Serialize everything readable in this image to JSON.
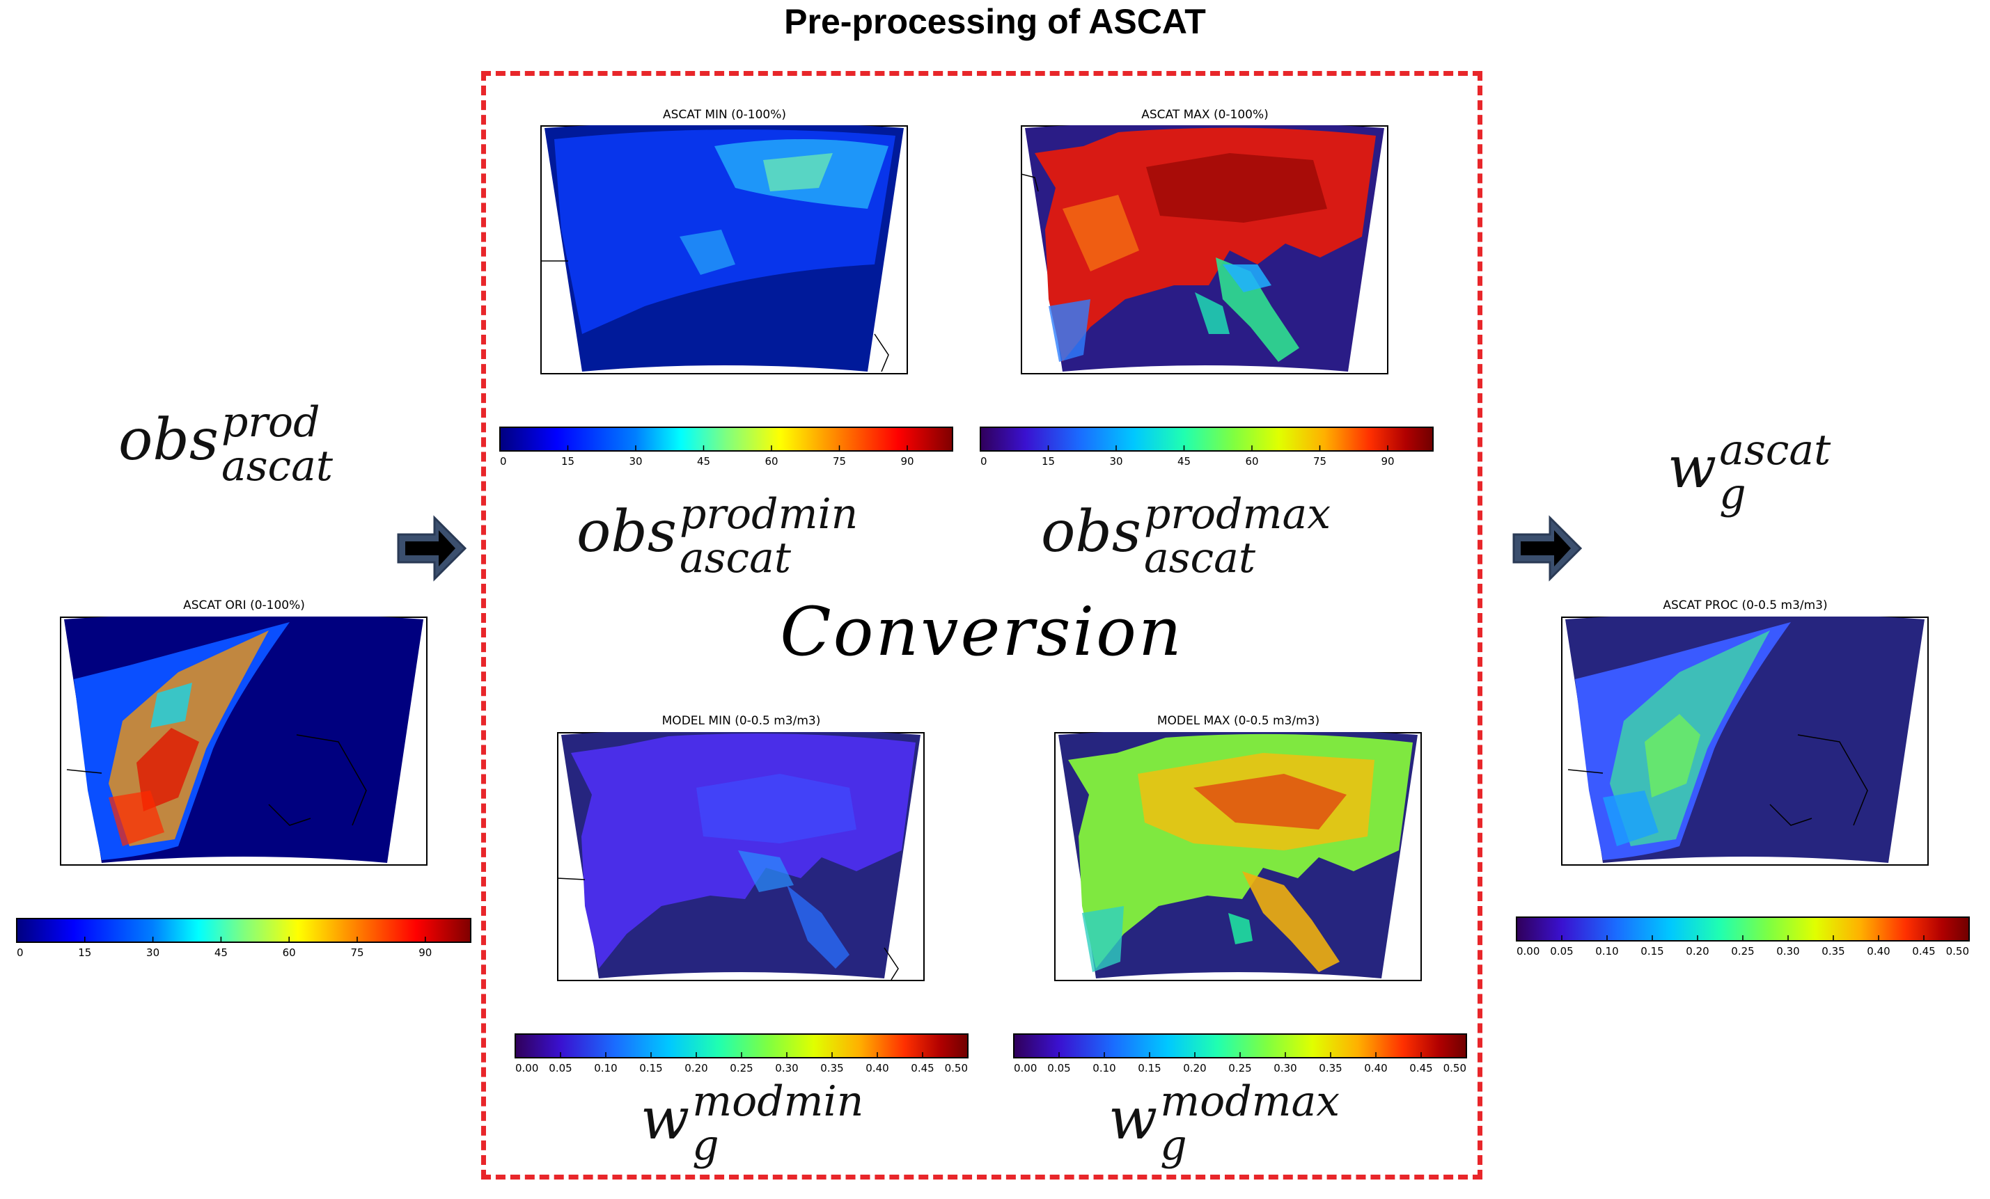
{
  "title": "Pre-processing of ASCAT",
  "conversion_label": "Conversion",
  "formulas": {
    "obs_prod": {
      "base": "obs",
      "sup": "prod",
      "sub": "ascat"
    },
    "obs_prodmin": {
      "base": "obs",
      "sup": "prodmin",
      "sub": "ascat"
    },
    "obs_prodmax": {
      "base": "obs",
      "sup": "prodmax",
      "sub": "ascat"
    },
    "wg_ascat": {
      "base": "w",
      "sup": "ascat",
      "sub": "g"
    },
    "wg_modmin": {
      "base": "w",
      "sup": "modmin",
      "sub": "g"
    },
    "wg_modmax": {
      "base": "w",
      "sup": "modmax",
      "sub": "g"
    }
  },
  "maps": {
    "ascat_ori": "ASCAT ORI (0-100%)",
    "ascat_min": "ASCAT MIN (0-100%)",
    "ascat_max": "ASCAT MAX (0-100%)",
    "model_min": "MODEL MIN (0-0.5 m3/m3)",
    "model_max": "MODEL MAX (0-0.5 m3/m3)",
    "ascat_proc": "ASCAT PROC (0-0.5 m3/m3)"
  },
  "colorbars": {
    "percent_ticks": [
      "0",
      "15",
      "30",
      "45",
      "60",
      "75",
      "90"
    ],
    "percent_range": [
      0,
      100
    ],
    "m3_ticks": [
      "0.00",
      "0.05",
      "0.10",
      "0.15",
      "0.20",
      "0.25",
      "0.30",
      "0.35",
      "0.40",
      "0.45",
      "0.50"
    ],
    "m3_range": [
      0,
      0.5
    ]
  },
  "colors": {
    "dashed_border": "#e8262a",
    "arrow_fill": "#3b4f6e",
    "map_background": "#26257f",
    "jet": [
      "#00007f",
      "#0000ff",
      "#007fff",
      "#00ffff",
      "#7fff7f",
      "#ffff00",
      "#ff7f00",
      "#ff0000",
      "#7f0000"
    ],
    "rainbow": [
      "#30005a",
      "#3a11d0",
      "#1a6cff",
      "#00c8ff",
      "#20ffb0",
      "#80ff40",
      "#e0ff00",
      "#ffb000",
      "#ff3000",
      "#b00000",
      "#700000"
    ]
  }
}
